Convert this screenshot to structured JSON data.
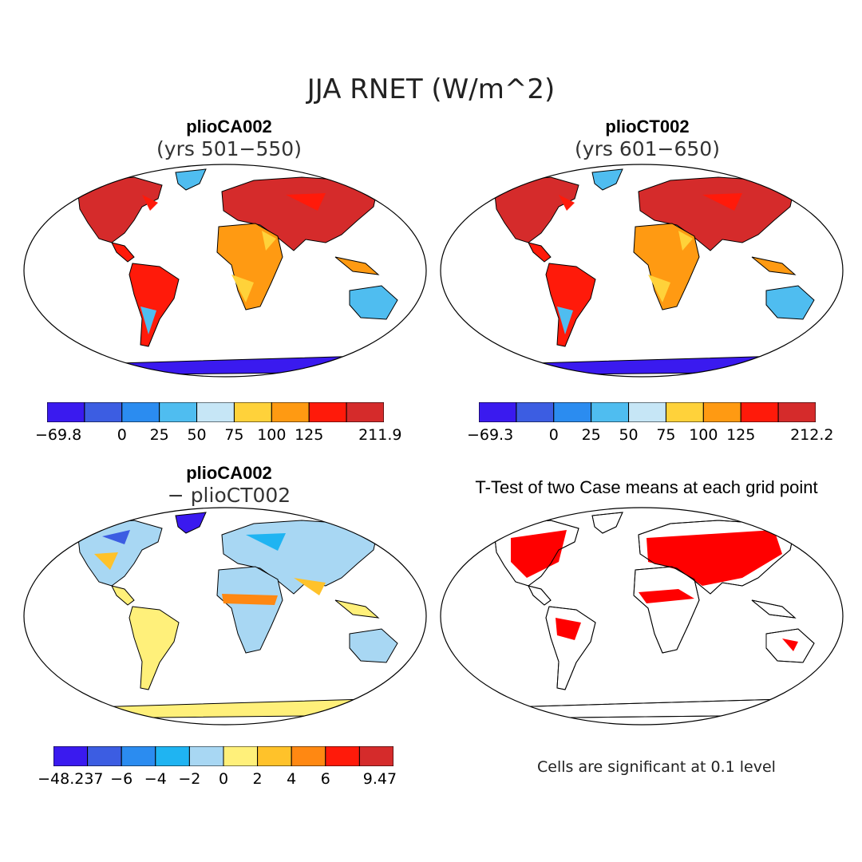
{
  "main_title": "JJA RNET (W/m^2)",
  "panels": {
    "top_left": {
      "title": "plioCA002",
      "subtitle": "(yrs 501−550)"
    },
    "top_right": {
      "title": "plioCT002",
      "subtitle": "(yrs 601−650)"
    },
    "bottom_left": {
      "title": "plioCA002",
      "subtitle": "− plioCT002"
    },
    "bottom_right": {
      "title": "T-Test of two Case means at each grid point"
    }
  },
  "colorbars": {
    "top_left": {
      "colors": [
        "#3a1aef",
        "#3c5de2",
        "#2b8cf0",
        "#4fbdf0",
        "#c6e6f6",
        "#ffd23a",
        "#ff9a12",
        "#ff1a0a",
        "#d52b2b"
      ],
      "labels": [
        "−69.8",
        "0",
        "25",
        "50",
        "75",
        "100",
        "125",
        "211.9"
      ]
    },
    "top_right": {
      "colors": [
        "#3a1aef",
        "#3c5de2",
        "#2b8cf0",
        "#4fbdf0",
        "#c6e6f6",
        "#ffd23a",
        "#ff9a12",
        "#ff1a0a",
        "#d52b2b"
      ],
      "labels": [
        "−69.3",
        "0",
        "25",
        "50",
        "75",
        "100",
        "125",
        "212.2"
      ]
    },
    "bottom_left": {
      "colors": [
        "#3a1aef",
        "#3c5de2",
        "#2b8cf0",
        "#1fb4f2",
        "#a8d7f3",
        "#fff07a",
        "#ffc22a",
        "#ff8812",
        "#ff1a0a",
        "#d52b2b"
      ],
      "labels": [
        "−48.237",
        "−6",
        "−4",
        "−2",
        "0",
        "2",
        "4",
        "6",
        "9.47"
      ]
    }
  },
  "significance_note": "Cells are significant at 0.1 level",
  "colors": {
    "significant": "#ff0000",
    "land_outline": "#000000"
  }
}
